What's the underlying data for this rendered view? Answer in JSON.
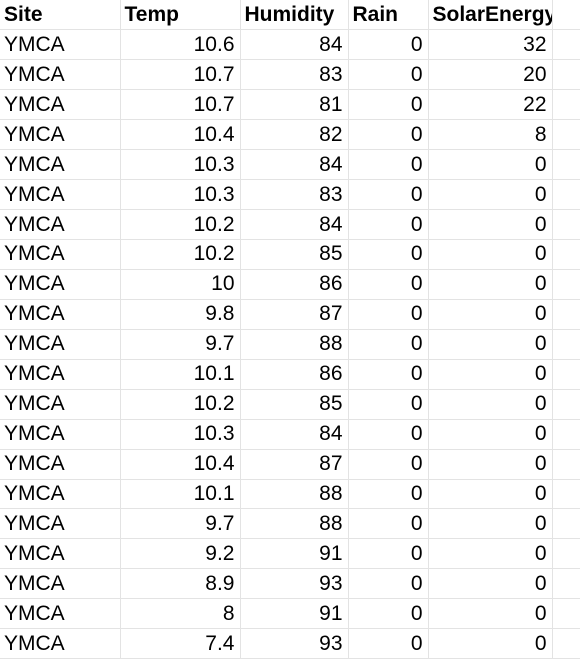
{
  "headers": [
    "Site",
    "Temp",
    "Humidity",
    "Rain",
    "SolarEnergy"
  ],
  "rows": [
    [
      "YMCA",
      "10.6",
      "84",
      "0",
      "32"
    ],
    [
      "YMCA",
      "10.7",
      "83",
      "0",
      "20"
    ],
    [
      "YMCA",
      "10.7",
      "81",
      "0",
      "22"
    ],
    [
      "YMCA",
      "10.4",
      "82",
      "0",
      "8"
    ],
    [
      "YMCA",
      "10.3",
      "84",
      "0",
      "0"
    ],
    [
      "YMCA",
      "10.3",
      "83",
      "0",
      "0"
    ],
    [
      "YMCA",
      "10.2",
      "84",
      "0",
      "0"
    ],
    [
      "YMCA",
      "10.2",
      "85",
      "0",
      "0"
    ],
    [
      "YMCA",
      "10",
      "86",
      "0",
      "0"
    ],
    [
      "YMCA",
      "9.8",
      "87",
      "0",
      "0"
    ],
    [
      "YMCA",
      "9.7",
      "88",
      "0",
      "0"
    ],
    [
      "YMCA",
      "10.1",
      "86",
      "0",
      "0"
    ],
    [
      "YMCA",
      "10.2",
      "85",
      "0",
      "0"
    ],
    [
      "YMCA",
      "10.3",
      "84",
      "0",
      "0"
    ],
    [
      "YMCA",
      "10.4",
      "87",
      "0",
      "0"
    ],
    [
      "YMCA",
      "10.1",
      "88",
      "0",
      "0"
    ],
    [
      "YMCA",
      "9.7",
      "88",
      "0",
      "0"
    ],
    [
      "YMCA",
      "9.2",
      "91",
      "0",
      "0"
    ],
    [
      "YMCA",
      "8.9",
      "93",
      "0",
      "0"
    ],
    [
      "YMCA",
      "8",
      "91",
      "0",
      "0"
    ],
    [
      "YMCA",
      "7.4",
      "93",
      "0",
      "0"
    ]
  ],
  "colors": {
    "gridline": "#e3e3e3",
    "text": "#000000",
    "background": "#ffffff"
  }
}
